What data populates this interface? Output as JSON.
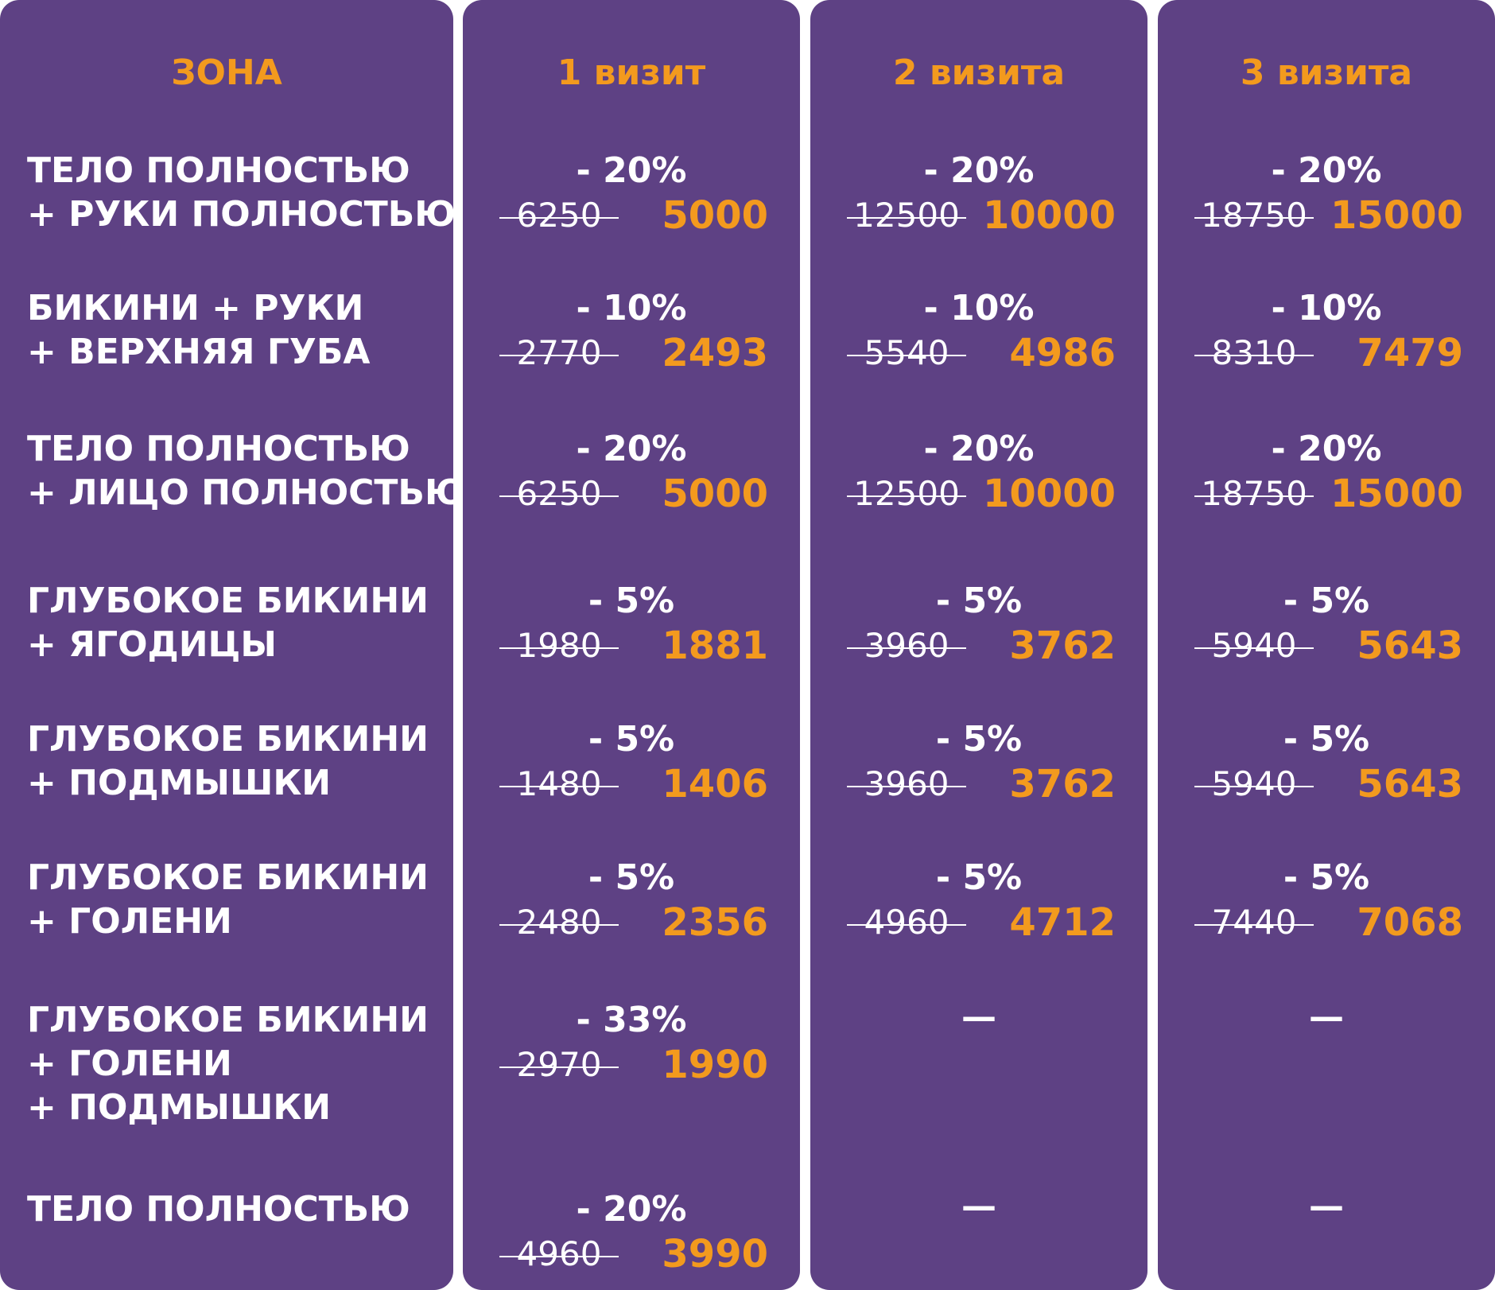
{
  "header": {
    "zone": "ЗОНА",
    "visit1": "1 визит",
    "visit2": "2 визита",
    "visit3": "3 визита"
  },
  "rows": [
    {
      "zone": [
        "ТЕЛО ПОЛНОСТЬЮ",
        "+ РУКИ ПОЛНОСТЬЮ"
      ],
      "v1": {
        "discount": "- 20%",
        "old": "6250",
        "new": "5000"
      },
      "v2": {
        "discount": "- 20%",
        "old": "12500",
        "new": "10000"
      },
      "v3": {
        "discount": "- 20%",
        "old": "18750",
        "new": "15000"
      }
    },
    {
      "zone": [
        "БИКИНИ + РУКИ",
        "+ ВЕРХНЯЯ ГУБА"
      ],
      "v1": {
        "discount": "- 10%",
        "old": "2770",
        "new": "2493"
      },
      "v2": {
        "discount": "- 10%",
        "old": "5540",
        "new": "4986"
      },
      "v3": {
        "discount": "- 10%",
        "old": "8310",
        "new": "7479"
      }
    },
    {
      "zone": [
        "ТЕЛО ПОЛНОСТЬЮ",
        "+ ЛИЦО ПОЛНОСТЬЮ"
      ],
      "v1": {
        "discount": "- 20%",
        "old": "6250",
        "new": "5000"
      },
      "v2": {
        "discount": "- 20%",
        "old": "12500",
        "new": "10000"
      },
      "v3": {
        "discount": "- 20%",
        "old": "18750",
        "new": "15000"
      }
    },
    {
      "zone": [
        "ГЛУБОКОЕ БИКИНИ",
        "+ ЯГОДИЦЫ"
      ],
      "v1": {
        "discount": "- 5%",
        "old": "1980",
        "new": "1881"
      },
      "v2": {
        "discount": "- 5%",
        "old": "3960",
        "new": "3762"
      },
      "v3": {
        "discount": "- 5%",
        "old": "5940",
        "new": "5643"
      }
    },
    {
      "zone": [
        "ГЛУБОКОЕ БИКИНИ",
        "+ ПОДМЫШКИ"
      ],
      "v1": {
        "discount": "- 5%",
        "old": "1480",
        "new": "1406"
      },
      "v2": {
        "discount": "- 5%",
        "old": "3960",
        "new": "3762"
      },
      "v3": {
        "discount": "- 5%",
        "old": "5940",
        "new": "5643"
      }
    },
    {
      "zone": [
        "ГЛУБОКОЕ БИКИНИ",
        "+ ГОЛЕНИ"
      ],
      "v1": {
        "discount": "- 5%",
        "old": "2480",
        "new": "2356"
      },
      "v2": {
        "discount": "- 5%",
        "old": "4960",
        "new": "4712"
      },
      "v3": {
        "discount": "- 5%",
        "old": "7440",
        "new": "7068"
      }
    },
    {
      "zone": [
        "ГЛУБОКОЕ БИКИНИ",
        "+ ГОЛЕНИ",
        "+ ПОДМЫШКИ"
      ],
      "v1": {
        "discount": "- 33%",
        "old": "2970",
        "new": "1990"
      },
      "v2": {
        "dash": "—"
      },
      "v3": {
        "dash": "—"
      }
    },
    {
      "zone": [
        "ТЕЛО ПОЛНОСТЬЮ"
      ],
      "v1": {
        "discount": "- 20%",
        "old": "4960",
        "new": "3990"
      },
      "v2": {
        "dash": "—"
      },
      "v3": {
        "dash": "—"
      }
    }
  ],
  "colors": {
    "panel": "#5e4184",
    "accent": "#f39a1e",
    "text": "#ffffff"
  }
}
